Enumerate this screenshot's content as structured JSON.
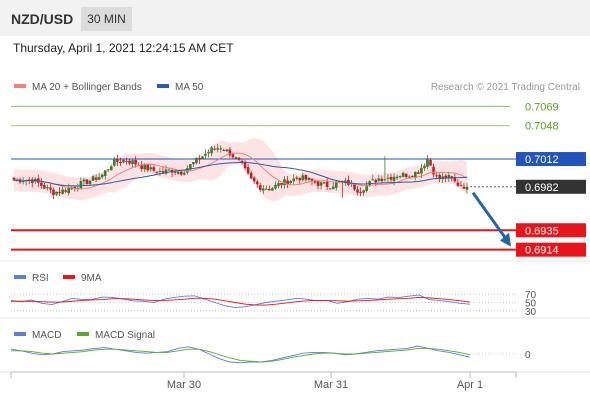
{
  "header": {
    "pair": "NZD/USD",
    "timeframe": "30 MIN"
  },
  "date_text": "Thursday, April 1, 2021 12:24:15 AM CET",
  "legend": {
    "ma20": "MA 20 + Bollinger Bands",
    "ma50": "MA 50",
    "credit": "Research © 2021 Trading Central",
    "rsi": "RSI",
    "nine_ma": "9MA",
    "macd": "MACD",
    "macd_signal": "MACD Signal"
  },
  "colors": {
    "ma20": "#f08080",
    "ma50": "#2b5ba8",
    "band_fill": "#fde3e3",
    "resistance": "#7ab648",
    "pivot": "#2255bb",
    "support": "#e8141b",
    "current": "#333333",
    "up_candle": "#3c7a2a",
    "down_candle": "#c02020",
    "macd": "#5b7fd6",
    "macd_signal": "#5aa832",
    "arrow": "#2266aa"
  },
  "chart_data": [
    {
      "type": "line",
      "title": "",
      "instrument": "NZD/USD",
      "timeframe": "30 MIN",
      "x_ticks": [
        "Mar 30",
        "Mar 31",
        "Apr 1"
      ],
      "ylim": [
        0.6905,
        0.7078
      ],
      "levels": [
        {
          "label": "0.7069",
          "value": 0.7069,
          "kind": "resistance"
        },
        {
          "label": "0.7048",
          "value": 0.7048,
          "kind": "resistance"
        },
        {
          "label": "0.7012",
          "value": 0.7012,
          "kind": "pivot"
        },
        {
          "label": "0.6982",
          "value": 0.6982,
          "kind": "current"
        },
        {
          "label": "0.6935",
          "value": 0.6935,
          "kind": "support"
        },
        {
          "label": "0.6914",
          "value": 0.6914,
          "kind": "support"
        }
      ],
      "series": [
        {
          "name": "MA 20 + Bollinger Bands"
        },
        {
          "name": "MA 50"
        }
      ],
      "price_path": [
        0.6989,
        0.699,
        0.6989,
        0.6982,
        0.6976,
        0.6978,
        0.6982,
        0.6986,
        0.699,
        0.6995,
        0.7008,
        0.7011,
        0.7009,
        0.7004,
        0.7,
        0.6998,
        0.7,
        0.6998,
        0.7006,
        0.7014,
        0.7022,
        0.7025,
        0.7018,
        0.7007,
        0.699,
        0.6982,
        0.698,
        0.6985,
        0.6989,
        0.6992,
        0.6989,
        0.6985,
        0.6983,
        0.6987,
        0.6986,
        0.6978,
        0.6985,
        0.6991,
        0.6992,
        0.6995,
        0.6995,
        0.6998,
        0.7012,
        0.699,
        0.6993,
        0.6985,
        0.6982
      ],
      "forecast_target": 0.6914
    },
    {
      "type": "line",
      "title": "",
      "ylim": [
        25,
        75
      ],
      "y_ticks": [
        "70",
        "50",
        "30"
      ],
      "series": [
        {
          "name": "RSI",
          "values": [
            55,
            52,
            56,
            48,
            45,
            52,
            60,
            57,
            58,
            63,
            62,
            58,
            54,
            53,
            50,
            58,
            62,
            65,
            66,
            58,
            50,
            42,
            38,
            40,
            45,
            50,
            53,
            56,
            60,
            58,
            54,
            55,
            48,
            52,
            58,
            60,
            58,
            63,
            62,
            65,
            68,
            57,
            55,
            52,
            48,
            46
          ]
        },
        {
          "name": "9MA",
          "values": [
            53,
            53,
            53,
            52,
            51,
            51,
            53,
            55,
            56,
            57,
            59,
            59,
            58,
            56,
            55,
            55,
            56,
            58,
            60,
            60,
            58,
            54,
            50,
            46,
            44,
            44,
            46,
            49,
            52,
            54,
            55,
            55,
            54,
            53,
            54,
            55,
            56,
            58,
            59,
            60,
            62,
            61,
            59,
            57,
            54,
            51
          ]
        }
      ]
    },
    {
      "type": "line",
      "title": "",
      "y_ticks": [
        "0"
      ],
      "ylim": [
        -0.002,
        0.0015
      ],
      "series": [
        {
          "name": "MACD",
          "values": [
            0.0006,
            0.0004,
            0.0001,
            -0.0001,
            0.0,
            0.0003,
            0.0004,
            0.0005,
            0.0007,
            0.0008,
            0.0006,
            0.0004,
            0.0002,
            0.0001,
            0.0002,
            0.0003,
            0.0007,
            0.0009,
            0.0006,
            0.0,
            -0.0006,
            -0.001,
            -0.0011,
            -0.001,
            -0.001,
            -0.0008,
            -0.0005,
            -0.0002,
            0.0001,
            0.0002,
            0.0002,
            0.0001,
            -0.0001,
            0.0,
            0.0002,
            0.0004,
            0.0005,
            0.0006,
            0.0007,
            0.001,
            0.0007,
            0.0004,
            0.0002,
            -0.0001,
            -0.0004
          ]
        },
        {
          "name": "MACD Signal",
          "values": [
            0.0004,
            0.0004,
            0.0003,
            0.0001,
            0.0,
            0.0001,
            0.0002,
            0.0003,
            0.0005,
            0.0006,
            0.0006,
            0.0005,
            0.0004,
            0.0003,
            0.0002,
            0.0002,
            0.0004,
            0.0006,
            0.0006,
            0.0003,
            -0.0001,
            -0.0005,
            -0.0008,
            -0.0009,
            -0.001,
            -0.0009,
            -0.0007,
            -0.0004,
            -0.0002,
            0.0,
            0.0001,
            0.0001,
            0.0,
            0.0,
            0.0001,
            0.0002,
            0.0003,
            0.0004,
            0.0005,
            0.0007,
            0.0007,
            0.0006,
            0.0004,
            0.0002,
            -0.0001
          ]
        }
      ]
    }
  ]
}
